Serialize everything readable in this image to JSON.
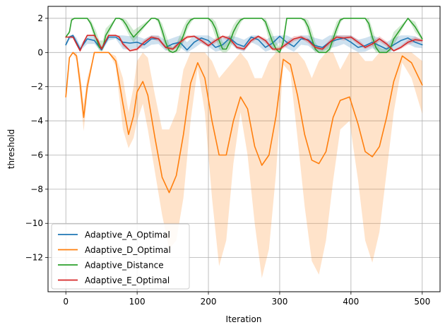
{
  "chart_data": {
    "type": "line",
    "title": "",
    "xlabel": "Iteration",
    "ylabel": "threshold",
    "xlim": [
      -25,
      525
    ],
    "ylim": [
      -14.0,
      2.7
    ],
    "xticks": [
      0,
      100,
      200,
      300,
      400,
      500
    ],
    "yticks": [
      2,
      0,
      -2,
      -4,
      -6,
      -8,
      -10,
      -12
    ],
    "grid": true,
    "legend_position": "lower-left",
    "series": [
      {
        "name": "Adaptive_A_Optimal",
        "color": "#1f77b4",
        "x": [
          0,
          5,
          10,
          15,
          20,
          30,
          40,
          50,
          60,
          70,
          80,
          90,
          100,
          110,
          120,
          130,
          140,
          150,
          160,
          170,
          180,
          190,
          200,
          210,
          220,
          230,
          240,
          250,
          260,
          270,
          280,
          290,
          300,
          310,
          320,
          330,
          340,
          350,
          360,
          370,
          380,
          390,
          400,
          410,
          420,
          430,
          440,
          450,
          460,
          470,
          480,
          490,
          500
        ],
        "y": [
          0.45,
          0.9,
          1.0,
          0.6,
          0.2,
          0.8,
          0.7,
          0.15,
          0.9,
          0.9,
          0.6,
          0.55,
          0.6,
          0.45,
          0.8,
          0.8,
          0.3,
          0.5,
          0.6,
          0.15,
          0.6,
          0.85,
          0.7,
          0.3,
          0.45,
          0.85,
          0.5,
          0.35,
          0.9,
          0.75,
          0.3,
          0.55,
          0.95,
          0.6,
          0.35,
          0.8,
          0.75,
          0.4,
          0.3,
          0.6,
          0.75,
          0.85,
          0.6,
          0.3,
          0.4,
          0.6,
          0.4,
          0.2,
          0.45,
          0.7,
          0.85,
          0.6,
          0.45
        ],
        "ci_lower": [
          0.35,
          0.75,
          0.85,
          0.4,
          0.1,
          0.5,
          0.5,
          0.05,
          0.7,
          0.8,
          0.2,
          0.15,
          0.3,
          0.2,
          0.45,
          0.5,
          0.1,
          0.2,
          0.3,
          0.0,
          0.25,
          0.55,
          0.35,
          0.05,
          0.15,
          0.55,
          0.2,
          0.05,
          0.6,
          0.4,
          0.05,
          0.2,
          0.6,
          0.25,
          0.05,
          0.45,
          0.4,
          0.05,
          0.05,
          0.25,
          0.35,
          0.5,
          0.25,
          0.02,
          0.05,
          0.25,
          0.05,
          0.0,
          0.1,
          0.35,
          0.5,
          0.3,
          0.25
        ],
        "ci_upper": [
          0.55,
          1.0,
          1.05,
          0.85,
          0.4,
          1.0,
          0.95,
          0.4,
          1.0,
          1.0,
          1.0,
          0.95,
          0.95,
          0.8,
          1.0,
          1.0,
          0.7,
          0.85,
          1.0,
          0.6,
          1.0,
          1.0,
          1.0,
          0.75,
          0.85,
          1.0,
          0.9,
          0.75,
          1.0,
          1.0,
          0.75,
          0.95,
          1.0,
          1.0,
          0.8,
          1.0,
          1.0,
          0.85,
          0.75,
          1.0,
          1.0,
          1.0,
          1.0,
          0.75,
          0.85,
          1.0,
          0.85,
          0.6,
          0.85,
          1.0,
          1.0,
          0.95,
          0.7
        ]
      },
      {
        "name": "Adaptive_D_Optimal",
        "color": "#ff7f0e",
        "x": [
          0,
          5,
          10,
          15,
          20,
          25,
          30,
          40,
          50,
          60,
          70,
          80,
          88,
          95,
          100,
          108,
          115,
          125,
          135,
          145,
          155,
          165,
          175,
          185,
          195,
          205,
          215,
          225,
          235,
          245,
          255,
          265,
          275,
          285,
          295,
          305,
          315,
          325,
          335,
          345,
          355,
          365,
          375,
          385,
          398,
          410,
          420,
          430,
          440,
          450,
          460,
          472,
          485,
          500
        ],
        "y": [
          -2.6,
          -0.3,
          0.0,
          -0.2,
          -1.8,
          -3.8,
          -2.0,
          0.0,
          0.0,
          0.0,
          -0.5,
          -3.0,
          -4.8,
          -3.7,
          -2.3,
          -1.7,
          -2.5,
          -5.0,
          -7.3,
          -8.2,
          -7.2,
          -4.8,
          -1.8,
          -0.6,
          -1.5,
          -4.0,
          -6.0,
          -6.0,
          -4.0,
          -2.6,
          -3.3,
          -5.5,
          -6.6,
          -6.0,
          -3.7,
          -0.4,
          -0.7,
          -2.5,
          -4.8,
          -6.3,
          -6.5,
          -5.8,
          -3.8,
          -2.8,
          -2.6,
          -4.2,
          -5.8,
          -6.1,
          -5.5,
          -3.8,
          -1.7,
          -0.2,
          -0.6,
          -1.9
        ],
        "ci_lower": [
          -2.6,
          -0.3,
          0.0,
          -0.5,
          -2.5,
          -4.6,
          -2.5,
          0.0,
          0.0,
          0.0,
          -0.8,
          -4.5,
          -5.6,
          -5.0,
          -4.0,
          -3.0,
          -4.5,
          -7.0,
          -9.5,
          -11.5,
          -11.0,
          -8.5,
          -4.0,
          -0.9,
          -3.5,
          -8.5,
          -12.5,
          -11.0,
          -6.5,
          -3.5,
          -6.0,
          -10.0,
          -13.2,
          -11.5,
          -7.0,
          -0.7,
          -1.2,
          -5.0,
          -9.0,
          -12.2,
          -13.0,
          -11.0,
          -7.5,
          -4.5,
          -4.0,
          -7.5,
          -11.0,
          -12.3,
          -10.5,
          -7.0,
          -3.5,
          -0.6,
          -1.5,
          -3.6
        ],
        "ci_upper": [
          -2.6,
          -0.3,
          0.0,
          0.0,
          -1.2,
          -3.0,
          -1.5,
          0.0,
          0.0,
          0.0,
          -0.2,
          -1.5,
          -3.5,
          -2.0,
          -0.5,
          0.0,
          -0.3,
          -2.5,
          -4.5,
          -4.5,
          -3.5,
          -1.0,
          0.0,
          0.0,
          0.0,
          -0.5,
          -1.5,
          -1.0,
          -0.5,
          0.0,
          -0.5,
          -1.5,
          -1.5,
          -0.5,
          0.0,
          0.0,
          0.0,
          0.0,
          -0.5,
          -1.5,
          -0.5,
          0.0,
          0.0,
          -1.0,
          0.0,
          0.0,
          -0.5,
          -0.5,
          0.0,
          0.0,
          0.0,
          0.0,
          0.0,
          -0.5
        ]
      },
      {
        "name": "Adaptive_Distance",
        "color": "#2ca02c",
        "x": [
          0,
          5,
          8,
          12,
          30,
          35,
          42,
          47,
          52,
          56,
          70,
          75,
          80,
          85,
          90,
          95,
          120,
          125,
          130,
          135,
          140,
          145,
          150,
          155,
          160,
          165,
          170,
          175,
          180,
          200,
          205,
          210,
          215,
          220,
          225,
          230,
          235,
          240,
          245,
          250,
          275,
          280,
          285,
          290,
          295,
          300,
          305,
          310,
          330,
          335,
          340,
          345,
          350,
          355,
          360,
          365,
          370,
          375,
          380,
          385,
          390,
          395,
          400,
          420,
          425,
          430,
          435,
          440,
          445,
          450,
          455,
          460,
          480,
          490,
          500
        ],
        "y": [
          0.9,
          1.2,
          1.9,
          2.0,
          2.0,
          1.7,
          0.9,
          0.3,
          0.3,
          1.0,
          2.0,
          2.0,
          1.9,
          1.6,
          1.2,
          0.9,
          2.0,
          2.0,
          1.9,
          1.3,
          0.6,
          0.1,
          0.0,
          0.1,
          0.5,
          1.0,
          1.6,
          1.9,
          2.0,
          2.0,
          1.8,
          1.4,
          0.7,
          0.2,
          0.2,
          0.6,
          1.2,
          1.6,
          1.9,
          2.0,
          2.0,
          1.8,
          1.2,
          0.6,
          0.2,
          0.0,
          0.6,
          2.0,
          2.0,
          1.9,
          1.5,
          0.8,
          0.2,
          0.0,
          0.0,
          0.0,
          0.2,
          0.8,
          1.4,
          1.9,
          2.0,
          2.0,
          2.0,
          2.0,
          1.7,
          0.9,
          0.3,
          0.0,
          0.0,
          0.0,
          0.2,
          0.8,
          2.0,
          1.5,
          0.8
        ],
        "ci_lower": [
          0.9,
          1.1,
          1.8,
          2.0,
          2.0,
          1.5,
          0.5,
          0.1,
          0.1,
          0.6,
          2.0,
          2.0,
          1.7,
          1.3,
          0.9,
          0.6,
          2.0,
          2.0,
          1.7,
          0.9,
          0.2,
          0.0,
          0.0,
          0.0,
          0.1,
          0.6,
          1.3,
          1.7,
          2.0,
          2.0,
          1.5,
          0.9,
          0.2,
          0.0,
          0.0,
          0.2,
          0.7,
          1.2,
          1.7,
          2.0,
          2.0,
          1.5,
          0.7,
          0.2,
          0.0,
          0.0,
          0.3,
          2.0,
          2.0,
          1.7,
          1.1,
          0.3,
          0.0,
          0.0,
          0.0,
          0.0,
          0.0,
          0.4,
          1.0,
          1.7,
          2.0,
          2.0,
          2.0,
          2.0,
          1.3,
          0.4,
          0.0,
          0.0,
          0.0,
          0.0,
          0.0,
          0.4,
          2.0,
          1.2,
          0.7
        ],
        "ci_upper": [
          0.9,
          1.3,
          2.0,
          2.0,
          2.0,
          1.9,
          1.3,
          0.7,
          0.7,
          1.4,
          2.0,
          2.0,
          2.0,
          1.9,
          1.6,
          1.3,
          2.0,
          2.0,
          2.0,
          1.7,
          1.1,
          0.5,
          0.3,
          0.5,
          1.0,
          1.5,
          1.9,
          2.0,
          2.0,
          2.0,
          2.0,
          1.8,
          1.2,
          0.6,
          0.6,
          1.1,
          1.6,
          1.9,
          2.0,
          2.0,
          2.0,
          2.0,
          1.6,
          1.1,
          0.6,
          0.3,
          1.0,
          2.0,
          2.0,
          2.0,
          1.9,
          1.3,
          0.6,
          0.3,
          0.2,
          0.3,
          0.6,
          1.2,
          1.8,
          2.0,
          2.0,
          2.0,
          2.0,
          2.0,
          2.0,
          1.4,
          0.7,
          0.3,
          0.2,
          0.3,
          0.6,
          1.2,
          2.0,
          1.8,
          0.9
        ]
      },
      {
        "name": "Adaptive_E_Optimal",
        "color": "#d62728",
        "x": [
          0,
          5,
          10,
          15,
          20,
          25,
          30,
          40,
          45,
          50,
          55,
          60,
          70,
          75,
          80,
          90,
          100,
          110,
          120,
          130,
          140,
          150,
          160,
          170,
          180,
          190,
          200,
          210,
          220,
          230,
          240,
          250,
          260,
          270,
          280,
          290,
          300,
          310,
          320,
          330,
          340,
          350,
          360,
          370,
          380,
          390,
          400,
          410,
          420,
          430,
          440,
          450,
          460,
          470,
          480,
          490,
          500
        ],
        "y": [
          0.9,
          0.9,
          0.9,
          0.5,
          0.1,
          0.6,
          1.0,
          1.0,
          0.7,
          0.2,
          0.6,
          1.0,
          1.0,
          0.9,
          0.5,
          0.1,
          0.2,
          0.6,
          0.9,
          0.8,
          0.3,
          0.2,
          0.6,
          0.9,
          0.95,
          0.7,
          0.4,
          0.7,
          0.95,
          0.8,
          0.3,
          0.2,
          0.7,
          0.95,
          0.7,
          0.2,
          0.2,
          0.5,
          0.8,
          0.9,
          0.7,
          0.3,
          0.2,
          0.6,
          0.9,
          0.85,
          0.9,
          0.6,
          0.3,
          0.5,
          0.8,
          0.5,
          0.1,
          0.3,
          0.6,
          0.75,
          0.7
        ],
        "ci_lower": [
          0.9,
          0.85,
          0.85,
          0.4,
          0.05,
          0.5,
          1.0,
          1.0,
          0.6,
          0.1,
          0.5,
          1.0,
          1.0,
          0.8,
          0.35,
          0.05,
          0.1,
          0.45,
          0.8,
          0.65,
          0.2,
          0.1,
          0.45,
          0.8,
          0.9,
          0.55,
          0.3,
          0.55,
          0.85,
          0.65,
          0.2,
          0.1,
          0.55,
          0.85,
          0.55,
          0.1,
          0.1,
          0.35,
          0.65,
          0.8,
          0.55,
          0.2,
          0.1,
          0.45,
          0.8,
          0.7,
          0.8,
          0.45,
          0.2,
          0.35,
          0.65,
          0.35,
          0.05,
          0.2,
          0.45,
          0.6,
          0.6
        ],
        "ci_upper": [
          0.9,
          0.95,
          0.95,
          0.6,
          0.15,
          0.7,
          1.0,
          1.0,
          0.8,
          0.3,
          0.7,
          1.0,
          1.0,
          1.0,
          0.65,
          0.15,
          0.3,
          0.75,
          1.0,
          0.95,
          0.4,
          0.3,
          0.75,
          1.0,
          1.0,
          0.85,
          0.5,
          0.85,
          1.0,
          0.95,
          0.4,
          0.3,
          0.85,
          1.0,
          0.85,
          0.3,
          0.3,
          0.65,
          0.95,
          1.0,
          0.85,
          0.4,
          0.3,
          0.75,
          1.0,
          1.0,
          1.0,
          0.75,
          0.4,
          0.65,
          0.95,
          0.65,
          0.15,
          0.4,
          0.75,
          0.9,
          0.8
        ]
      }
    ]
  }
}
